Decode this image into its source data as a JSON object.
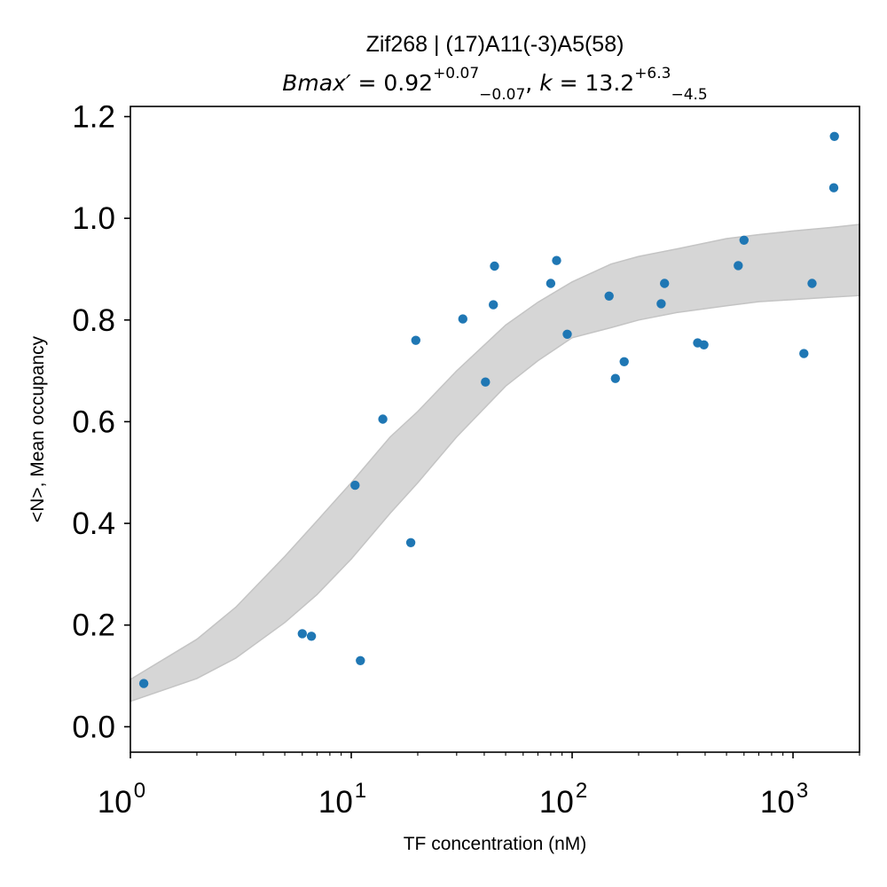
{
  "chart_data": {
    "type": "scatter",
    "title": "Zif268 | (17)A11(-3)A5(58)",
    "subtitle": {
      "bmax_label": "Bmax′",
      "equals": " = ",
      "bmax_value": "0.92",
      "bmax_plus": "+0.07",
      "bmax_minus": "−0.07",
      "separator": ", ",
      "k_label": "k",
      "k_value": "13.2",
      "k_plus": "+6.3",
      "k_minus": "−4.5"
    },
    "xlabel": "TF concentration (nM)",
    "ylabel": "<N>, Mean occupancy",
    "x_scale": "log",
    "xlim": [
      1,
      2000
    ],
    "ylim": [
      -0.05,
      1.22
    ],
    "grid": false,
    "x_ticks": [
      {
        "value": 1,
        "base": "10",
        "exp": "0"
      },
      {
        "value": 10,
        "base": "10",
        "exp": "1"
      },
      {
        "value": 100,
        "base": "10",
        "exp": "2"
      },
      {
        "value": 1000,
        "base": "10",
        "exp": "3"
      }
    ],
    "y_ticks": [
      {
        "value": 0.0,
        "label": "0.0"
      },
      {
        "value": 0.2,
        "label": "0.2"
      },
      {
        "value": 0.4,
        "label": "0.4"
      },
      {
        "value": 0.6,
        "label": "0.6"
      },
      {
        "value": 0.8,
        "label": "0.8"
      },
      {
        "value": 1.0,
        "label": "1.0"
      },
      {
        "value": 1.2,
        "label": "1.2"
      }
    ],
    "points": [
      {
        "x": 1.15,
        "y": 0.085
      },
      {
        "x": 6.0,
        "y": 0.183
      },
      {
        "x": 6.6,
        "y": 0.178
      },
      {
        "x": 10.4,
        "y": 0.475
      },
      {
        "x": 11.0,
        "y": 0.13
      },
      {
        "x": 13.9,
        "y": 0.605
      },
      {
        "x": 18.6,
        "y": 0.362
      },
      {
        "x": 19.6,
        "y": 0.76
      },
      {
        "x": 32.0,
        "y": 0.802
      },
      {
        "x": 40.5,
        "y": 0.678
      },
      {
        "x": 44.0,
        "y": 0.83
      },
      {
        "x": 44.5,
        "y": 0.906
      },
      {
        "x": 80.0,
        "y": 0.872
      },
      {
        "x": 85.0,
        "y": 0.917
      },
      {
        "x": 95.0,
        "y": 0.772
      },
      {
        "x": 147.0,
        "y": 0.847
      },
      {
        "x": 157.0,
        "y": 0.685
      },
      {
        "x": 172.0,
        "y": 0.718
      },
      {
        "x": 253.0,
        "y": 0.832
      },
      {
        "x": 262.0,
        "y": 0.872
      },
      {
        "x": 370.0,
        "y": 0.755
      },
      {
        "x": 395.0,
        "y": 0.751
      },
      {
        "x": 565.0,
        "y": 0.907
      },
      {
        "x": 600.0,
        "y": 0.957
      },
      {
        "x": 1120.0,
        "y": 0.734
      },
      {
        "x": 1220.0,
        "y": 0.872
      },
      {
        "x": 1530.0,
        "y": 1.06
      },
      {
        "x": 1540.0,
        "y": 1.161
      }
    ],
    "band": {
      "color": "#d6d6d6",
      "edge_color": "#c4c4c4",
      "x": [
        1,
        2,
        3,
        5,
        7,
        10,
        15,
        20,
        30,
        50,
        70,
        100,
        150,
        200,
        300,
        500,
        700,
        1000,
        1500,
        2000
      ],
      "lower": [
        0.05,
        0.095,
        0.135,
        0.205,
        0.26,
        0.33,
        0.42,
        0.48,
        0.57,
        0.67,
        0.72,
        0.765,
        0.785,
        0.8,
        0.815,
        0.828,
        0.836,
        0.84,
        0.845,
        0.848
      ],
      "upper": [
        0.093,
        0.172,
        0.235,
        0.335,
        0.405,
        0.48,
        0.57,
        0.62,
        0.7,
        0.79,
        0.835,
        0.875,
        0.91,
        0.925,
        0.94,
        0.96,
        0.968,
        0.975,
        0.982,
        0.988
      ]
    },
    "point_color": "#1f77b4"
  }
}
